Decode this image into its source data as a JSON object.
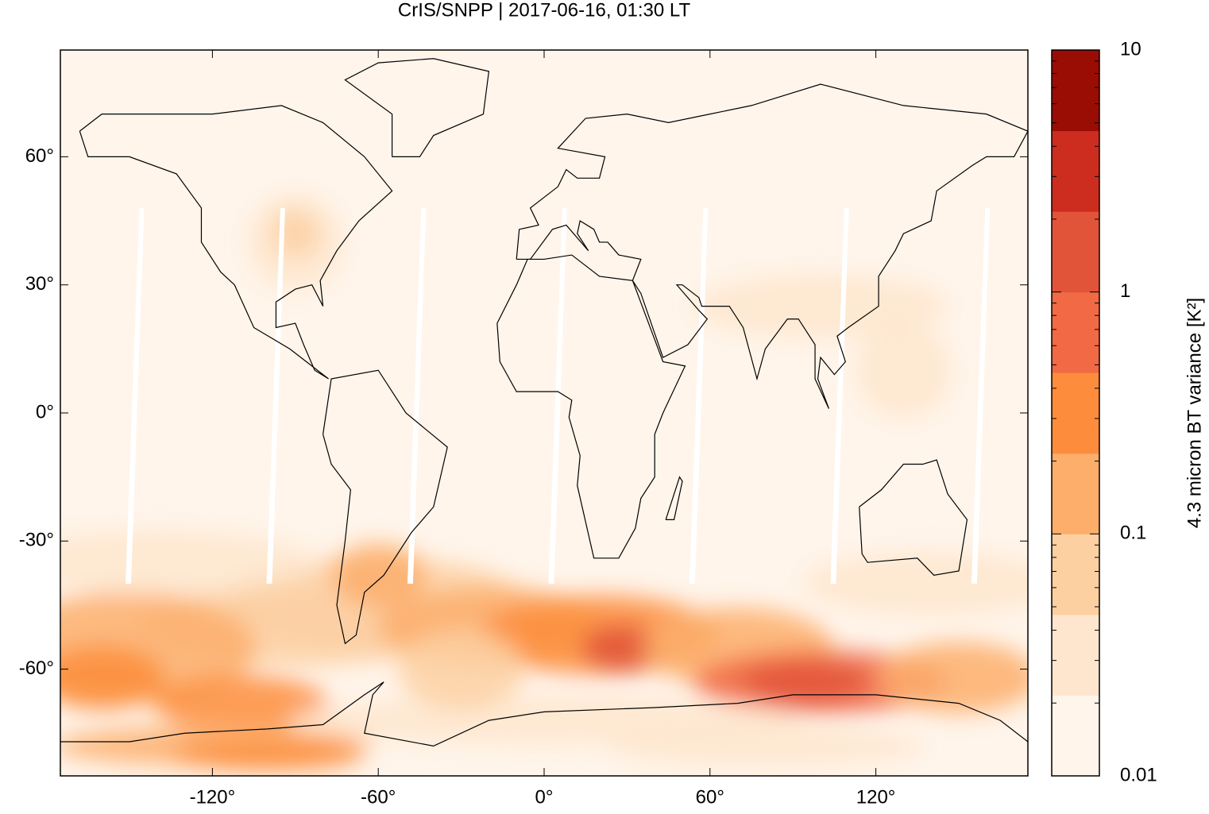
{
  "chart_data": {
    "type": "map",
    "title": "CrIS/SNPP | 2017-06-16, 01:30 LT",
    "xlim": [
      -175,
      175
    ],
    "ylim": [
      -85,
      85
    ],
    "xticks": [
      {
        "value": -120,
        "label": "-120°"
      },
      {
        "value": -60,
        "label": "-60°"
      },
      {
        "value": 0,
        "label": "0°"
      },
      {
        "value": 60,
        "label": "60°"
      },
      {
        "value": 120,
        "label": "120°"
      }
    ],
    "yticks": [
      {
        "value": -60,
        "label": "-60°"
      },
      {
        "value": -30,
        "label": "-30°"
      },
      {
        "value": 0,
        "label": "0°"
      },
      {
        "value": 30,
        "label": "30°"
      },
      {
        "value": 60,
        "label": "60°"
      }
    ],
    "colorbar": {
      "label": "4.3 micron BT variance [K²]",
      "log": true,
      "lim": [
        0.01,
        10
      ],
      "ticks": [
        0.01,
        0.1,
        1,
        10
      ],
      "colors": [
        "#fff5eb",
        "#fee6ce",
        "#fdd0a2",
        "#fdae6b",
        "#fd8d3c",
        "#f16a45",
        "#e2543a",
        "#cc2d1f",
        "#990d04"
      ]
    }
  }
}
